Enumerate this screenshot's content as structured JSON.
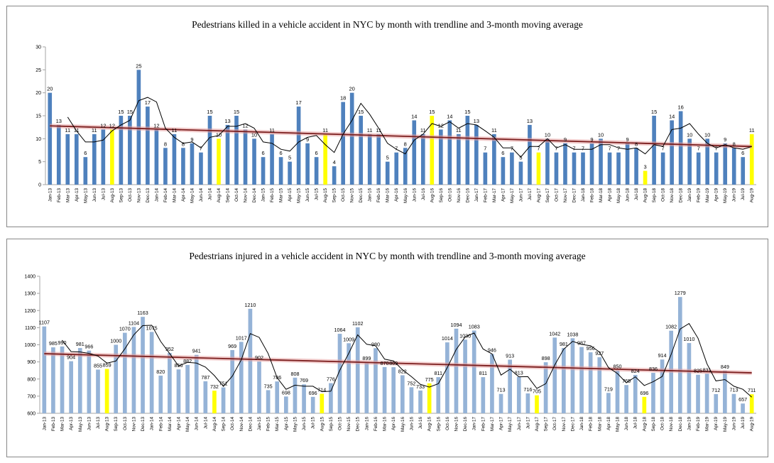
{
  "chart_data": [
    {
      "type": "bar",
      "title": "Pedestrians killed in a vehicle accident  in NYC  by month with trendline and 3-month moving average",
      "xlabel": "",
      "ylabel": "",
      "ylim": [
        0,
        30
      ],
      "yticks": [
        0,
        5,
        10,
        15,
        20,
        25,
        30
      ],
      "grid": false,
      "legend": "none",
      "categories": [
        "Jan-13",
        "Feb-13",
        "Mar-13",
        "Apr-13",
        "May-13",
        "Jun-13",
        "Jul-13",
        "Aug-13",
        "Sep-13",
        "Oct-13",
        "Nov-13",
        "Dec-13",
        "Jan-14",
        "Feb-14",
        "Mar-14",
        "Apr-14",
        "May-14",
        "Jun-14",
        "Jul-14",
        "Aug-14",
        "Sep-14",
        "Oct-14",
        "Nov-14",
        "Dec-14",
        "Jan-15",
        "Feb-15",
        "Mar-15",
        "Apr-15",
        "May-15",
        "Jun-15",
        "Jul-15",
        "Aug-15",
        "Sep-15",
        "Oct-15",
        "Nov-15",
        "Dec-15",
        "Jan-16",
        "Feb-16",
        "Mar-16",
        "Apr-16",
        "May-16",
        "Jun-16",
        "Jul-16",
        "Aug-16",
        "Sep-16",
        "Oct-16",
        "Nov-16",
        "Dec-16",
        "Jan-17",
        "Feb-17",
        "Mar-17",
        "Apr-17",
        "May-17",
        "Jun-17",
        "Jul-17",
        "Aug-17",
        "Sep-17",
        "Oct-17",
        "Nov-17",
        "Dec-17",
        "Jan-18",
        "Feb-18",
        "Mar-18",
        "Apr-18",
        "May-18",
        "Jun-18",
        "Jul-18",
        "Aug-18",
        "Sep-18",
        "Oct-18",
        "Nov-18",
        "Dec-18",
        "Jan-19",
        "Feb-19",
        "Mar-19",
        "Apr-19",
        "May-19",
        "Jun-19",
        "Jul-19",
        "Aug-19"
      ],
      "values": [
        20,
        13,
        11,
        11,
        6,
        11,
        12,
        12,
        15,
        15,
        25,
        17,
        12,
        8,
        11,
        8,
        9,
        7,
        15,
        10,
        13,
        15,
        12,
        10,
        6,
        11,
        6,
        5,
        17,
        9,
        6,
        11,
        4,
        18,
        20,
        15,
        11,
        11,
        5,
        7,
        8,
        14,
        11,
        15,
        12,
        14,
        11,
        15,
        13,
        7,
        11,
        6,
        7,
        5,
        13,
        7,
        10,
        7,
        9,
        7,
        7,
        9,
        10,
        7,
        7,
        9,
        8,
        3,
        15,
        7,
        14,
        16,
        10,
        7,
        10,
        7,
        9,
        8,
        6,
        11
      ],
      "labels": [
        "20",
        "13",
        "11",
        "11",
        "6",
        "11",
        "12",
        "12",
        "15",
        "15",
        "25",
        "17",
        "12",
        "8",
        "11",
        "8",
        "9",
        "7",
        "15",
        "10",
        "13",
        "15",
        "12",
        "10",
        "6",
        "11",
        "6",
        "5",
        "17",
        "9",
        "6",
        "11",
        "4",
        "18",
        "20",
        "15",
        "11",
        "11",
        "5",
        "7",
        "8",
        "14",
        "11",
        "15",
        "12",
        "14",
        "11",
        "15",
        "13",
        "7",
        "11",
        "6",
        "7",
        "5",
        "13",
        "7",
        "10",
        "7",
        "9",
        "7",
        "7",
        "9",
        "10",
        "7",
        "7",
        "9",
        "8",
        "3",
        "15",
        "7",
        "14",
        "16",
        "10",
        "7",
        "10",
        "7",
        "9",
        "8",
        "6",
        "11"
      ],
      "label_visible": [
        1,
        1,
        1,
        1,
        1,
        1,
        1,
        1,
        1,
        1,
        1,
        1,
        1,
        1,
        1,
        1,
        1,
        1,
        1,
        1,
        1,
        1,
        1,
        1,
        1,
        1,
        1,
        1,
        1,
        1,
        1,
        1,
        1,
        1,
        1,
        1,
        1,
        1,
        1,
        1,
        1,
        1,
        1,
        1,
        1,
        1,
        1,
        1,
        1,
        1,
        1,
        1,
        1,
        1,
        1,
        1,
        1,
        1,
        1,
        1,
        1,
        1,
        1,
        1,
        1,
        1,
        1,
        1,
        1,
        1,
        1,
        1,
        1,
        1,
        1,
        1,
        1,
        1,
        1,
        1
      ],
      "highlight_indices": [
        7,
        19,
        31,
        43,
        55,
        67,
        79
      ],
      "colors": {
        "bar": "#4f81bd",
        "highlight": "#ffff00",
        "trend": "#7b1e1e",
        "trend_band": "#e6a1a1",
        "moving_average": "#000000",
        "axis": "#a6a6a6",
        "text": "#000000"
      },
      "trendline": {
        "start": 12.8,
        "end": 8.3
      },
      "moving_average": [
        null,
        null,
        14.7,
        11.7,
        9.3,
        9.3,
        9.7,
        11.7,
        13,
        14,
        18.3,
        19,
        18,
        12.3,
        10.3,
        9,
        9.3,
        8,
        10.3,
        10.7,
        12.7,
        12.7,
        13.3,
        12.3,
        9.3,
        9,
        7.7,
        7.3,
        9.3,
        10.3,
        10.7,
        8.7,
        7,
        11,
        14,
        17.7,
        15.3,
        12.3,
        9,
        7.7,
        6.7,
        9.7,
        11,
        13.3,
        12.7,
        13.7,
        12.3,
        13.3,
        13,
        11.7,
        10.3,
        8,
        8,
        6,
        8.3,
        8.3,
        10,
        8,
        8.7,
        7.7,
        7.7,
        7.7,
        8.7,
        8.7,
        8,
        7.7,
        8,
        6.7,
        8.7,
        8.3,
        12,
        12.3,
        13.3,
        11,
        9,
        8,
        8.7,
        8,
        7.7,
        8.3
      ]
    },
    {
      "type": "bar",
      "title": "Pedestrians injured in a vehicle accident in NYC by month with trendline and 3-month moving average",
      "xlabel": "",
      "ylabel": "",
      "ylim": [
        600,
        1400
      ],
      "yticks": [
        600,
        700,
        800,
        900,
        1000,
        1100,
        1200,
        1300,
        1400
      ],
      "grid": false,
      "legend": "none",
      "categories": [
        "Jan-13",
        "Feb-13",
        "Mar-13",
        "Apr-13",
        "May-13",
        "Jun-13",
        "Jul-13",
        "Aug-13",
        "Sep-13",
        "Oct-13",
        "Nov-13",
        "Dec-13",
        "Jan-14",
        "Feb-14",
        "Mar-14",
        "Apr-14",
        "May-14",
        "Jun-14",
        "Jul-14",
        "Aug-14",
        "Sep-14",
        "Oct-14",
        "Nov-14",
        "Dec-14",
        "Jan-15",
        "Feb-15",
        "Mar-15",
        "Apr-15",
        "May-15",
        "Jun-15",
        "Jul-15",
        "Aug-15",
        "Sep-15",
        "Oct-15",
        "Nov-15",
        "Dec-15",
        "Jan-16",
        "Feb-16",
        "Mar-16",
        "Apr-16",
        "May-16",
        "Jun-16",
        "Jul-16",
        "Aug-16",
        "Sep-16",
        "Oct-16",
        "Nov-16",
        "Dec-16",
        "Jan-17",
        "Feb-17",
        "Mar-17",
        "Apr-17",
        "May-17",
        "Jun-17",
        "Jul-17",
        "Aug-17",
        "Sep-17",
        "Oct-17",
        "Nov-17",
        "Dec-17",
        "Jan-18",
        "Feb-18",
        "Mar-18",
        "Apr-18",
        "May-18",
        "Jun-18",
        "Jul-18",
        "Aug-18",
        "Sep-18",
        "Oct-18",
        "Nov-18",
        "Dec-18",
        "Jan-19",
        "Feb-19",
        "Mar-19",
        "Apr-19",
        "May-19",
        "Jun-19",
        "Jul-19",
        "Aug-19"
      ],
      "values": [
        1107,
        985,
        990,
        904,
        981,
        966,
        855,
        859,
        1000,
        1070,
        1104,
        1163,
        1075,
        820,
        952,
        856,
        882,
        941,
        787,
        732,
        751,
        969,
        1017,
        1210,
        902,
        735,
        786,
        698,
        808,
        769,
        696,
        714,
        776,
        1064,
        1009,
        1102,
        899,
        980,
        870,
        869,
        822,
        752,
        733,
        775,
        811,
        1014,
        1094,
        1030,
        1083,
        811,
        946,
        713,
        913,
        813,
        716,
        705,
        898,
        1042,
        981,
        1038,
        987,
        956,
        927,
        719,
        850,
        765,
        824,
        696,
        836,
        914,
        1082,
        1279,
        1010,
        825,
        831,
        712,
        849,
        713,
        657,
        711
      ],
      "labels": [
        "1107",
        "985",
        "990",
        "904",
        "981",
        "966",
        "855",
        "859",
        "1000",
        "1070",
        "1104",
        "1163",
        "1075",
        "820",
        "952",
        "856",
        "882",
        "941",
        "787",
        "732",
        "751",
        "969",
        "1017",
        "1210",
        "902",
        "735",
        "786",
        "698",
        "808",
        "769",
        "696",
        "714",
        "776",
        "1064",
        "1009",
        "1102",
        "899",
        "980",
        "870",
        "869",
        "822",
        "752",
        "733",
        "775",
        "811",
        "1014",
        "1094",
        "1030",
        "1083",
        "811",
        "946",
        "713",
        "913",
        "813",
        "716",
        "705",
        "898",
        "1042",
        "981",
        "1038",
        "987",
        "956",
        "927",
        "719",
        "850",
        "765",
        "824",
        "696",
        "836",
        "914",
        "1082",
        "1279",
        "1010",
        "825",
        "831",
        "712",
        "849",
        "713",
        "657",
        "711"
      ],
      "label_visible": [
        1,
        1,
        1,
        1,
        1,
        1,
        1,
        1,
        1,
        1,
        1,
        1,
        1,
        1,
        1,
        1,
        1,
        1,
        1,
        1,
        1,
        1,
        1,
        1,
        1,
        1,
        1,
        1,
        1,
        1,
        1,
        1,
        1,
        1,
        1,
        1,
        1,
        1,
        1,
        1,
        1,
        1,
        1,
        1,
        1,
        1,
        1,
        1,
        1,
        1,
        1,
        1,
        1,
        1,
        1,
        1,
        1,
        1,
        1,
        1,
        1,
        1,
        1,
        1,
        1,
        1,
        1,
        1,
        1,
        1,
        1,
        1,
        1,
        1,
        1,
        1,
        1,
        1,
        1,
        1
      ],
      "highlight_indices": [
        7,
        19,
        31,
        43,
        55,
        67,
        79
      ],
      "colors": {
        "bar": "#95b3d7",
        "highlight": "#ffff00",
        "trend": "#7b1e1e",
        "trend_band": "#e6a1a1",
        "moving_average": "#000000",
        "axis": "#a6a6a6",
        "text": "#000000"
      },
      "trendline": {
        "start": 948,
        "end": 836
      },
      "moving_average": [
        null,
        null,
        1027,
        960,
        958,
        950,
        934,
        893,
        905,
        976,
        1058,
        1112,
        1114,
        1019,
        949,
        876,
        897,
        893,
        870,
        820,
        757,
        817,
        912,
        1065,
        1043,
        949,
        808,
        740,
        764,
        758,
        758,
        726,
        729,
        851,
        950,
        1058,
        1003,
        994,
        916,
        906,
        854,
        814,
        769,
        753,
        773,
        867,
        973,
        1046,
        1069,
        975,
        947,
        823,
        857,
        813,
        814,
        745,
        773,
        882,
        974,
        1020,
        1002,
        994,
        957,
        867,
        832,
        778,
        813,
        762,
        785,
        815,
        944,
        1092,
        1124,
        1038,
        889,
        789,
        797,
        758,
        740,
        694
      ]
    }
  ]
}
